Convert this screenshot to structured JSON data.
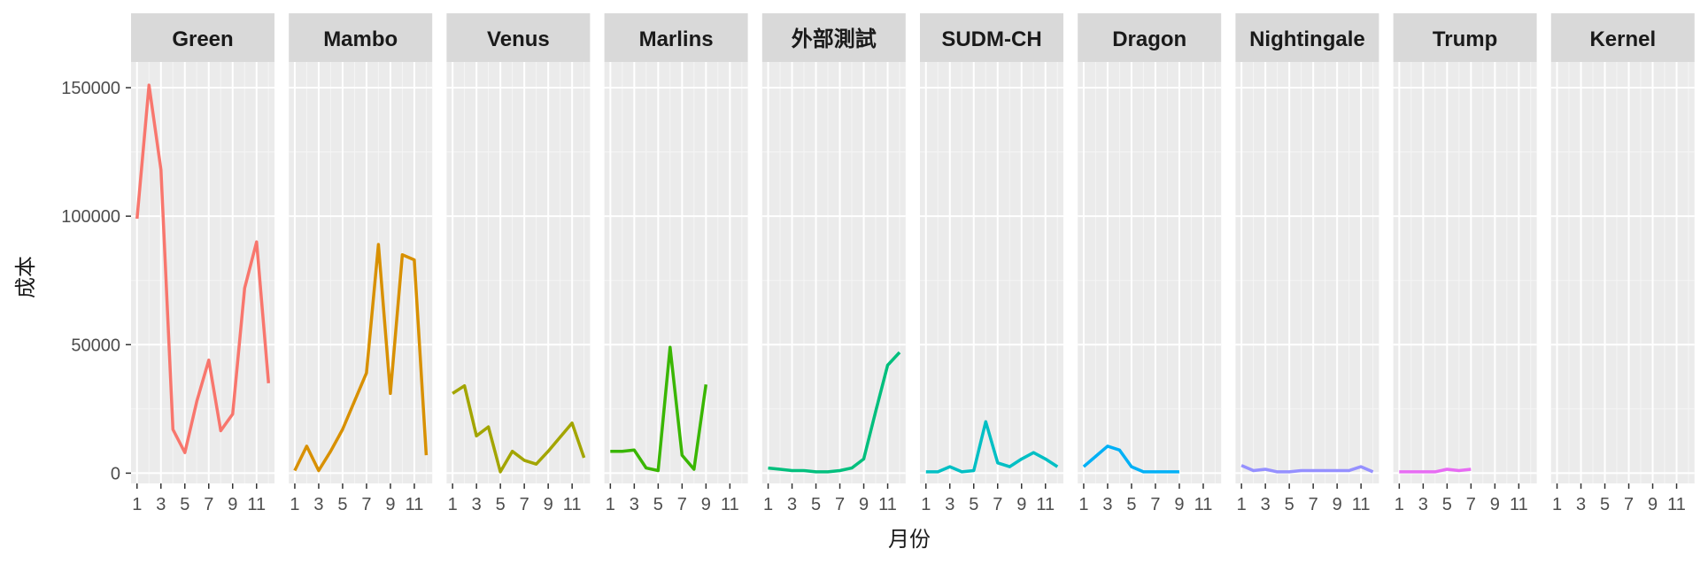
{
  "chart_data": {
    "type": "line",
    "xlabel": "月份",
    "ylabel": "成本",
    "xlim": [
      0.5,
      12.5
    ],
    "ylim": [
      -4000,
      160000
    ],
    "x_ticks": [
      1,
      3,
      5,
      7,
      9,
      11
    ],
    "x_tick_labels": [
      "1",
      "3",
      "5",
      "7",
      "9",
      "11"
    ],
    "y_ticks": [
      0,
      50000,
      100000,
      150000
    ],
    "y_tick_labels": [
      "0",
      "50000",
      "100000",
      "150000"
    ],
    "grid": true,
    "legend": "none",
    "panels": [
      {
        "name": "Green",
        "color": "#F8766D",
        "x": [
          1,
          2,
          3,
          4,
          5,
          6,
          7,
          8,
          9,
          10,
          11,
          12
        ],
        "values": [
          99000,
          151000,
          118000,
          17000,
          8000,
          28000,
          44000,
          16500,
          23000,
          72000,
          90000,
          35000
        ]
      },
      {
        "name": "Mambo",
        "color": "#D89000",
        "x": [
          1,
          2,
          3,
          4,
          5,
          6,
          7,
          8,
          9,
          10,
          11,
          12
        ],
        "values": [
          1000,
          10500,
          1000,
          8500,
          17000,
          28000,
          39000,
          89000,
          31000,
          85000,
          83000,
          7000
        ]
      },
      {
        "name": "Venus",
        "color": "#A3A500",
        "x": [
          1,
          2,
          3,
          4,
          5,
          6,
          7,
          8,
          9,
          10,
          11,
          12
        ],
        "values": [
          31000,
          34000,
          14500,
          18000,
          500,
          8500,
          5000,
          3500,
          8500,
          14000,
          19500,
          6000
        ]
      },
      {
        "name": "Marlins",
        "color": "#39B600",
        "x": [
          1,
          2,
          3,
          4,
          5,
          6,
          7,
          8,
          9
        ],
        "values": [
          8500,
          8500,
          9000,
          2000,
          1000,
          49000,
          7000,
          1500,
          34500
        ]
      },
      {
        "name": "外部測試",
        "color": "#00BF7D",
        "x": [
          1,
          2,
          3,
          4,
          5,
          6,
          7,
          8,
          9,
          10,
          11,
          12
        ],
        "values": [
          2000,
          1500,
          1000,
          1000,
          500,
          500,
          1000,
          2000,
          5500,
          24000,
          42000,
          47000
        ]
      },
      {
        "name": "SUDM-CH",
        "color": "#00BFC4",
        "x": [
          1,
          2,
          3,
          4,
          5,
          6,
          7,
          8,
          9,
          10,
          11,
          12
        ],
        "values": [
          500,
          500,
          2500,
          500,
          1000,
          20000,
          4000,
          2500,
          5500,
          8000,
          5500,
          2500
        ]
      },
      {
        "name": "Dragon",
        "color": "#00B0F6",
        "x": [
          1,
          2,
          3,
          4,
          5,
          6,
          7,
          8,
          9
        ],
        "values": [
          2500,
          6500,
          10500,
          9000,
          2500,
          500,
          500,
          500,
          500
        ]
      },
      {
        "name": "Nightingale",
        "color": "#9590FF",
        "x": [
          1,
          2,
          3,
          4,
          5,
          6,
          7,
          8,
          9,
          10,
          11,
          12
        ],
        "values": [
          3000,
          1000,
          1500,
          500,
          500,
          1000,
          1000,
          1000,
          1000,
          1000,
          2500,
          500
        ]
      },
      {
        "name": "Trump",
        "color": "#E76BF3",
        "x": [
          1,
          2,
          3,
          4,
          5,
          6,
          7
        ],
        "values": [
          500,
          500,
          500,
          500,
          1500,
          1000,
          1500
        ]
      },
      {
        "name": "Kernel",
        "color": "#FF62BC",
        "x": [],
        "values": []
      }
    ]
  }
}
